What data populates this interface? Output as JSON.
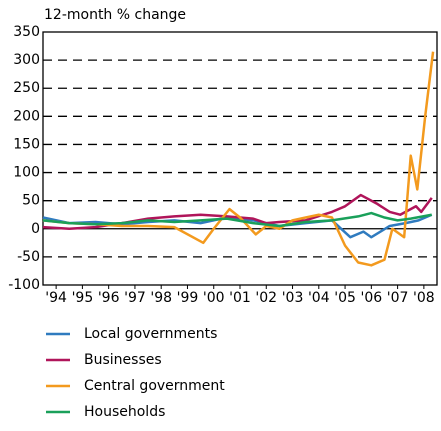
{
  "chart_data": {
    "type": "line",
    "y_label": "12-month % change",
    "xlim": [
      1994,
      2009
    ],
    "xticks": [
      {
        "value": 1994.5,
        "label": "'94"
      },
      {
        "value": 1995.5,
        "label": "'95"
      },
      {
        "value": 1996.5,
        "label": "'96"
      },
      {
        "value": 1997.5,
        "label": "'97"
      },
      {
        "value": 1998.5,
        "label": "'98"
      },
      {
        "value": 1999.5,
        "label": "'99"
      },
      {
        "value": 2000.5,
        "label": "'00"
      },
      {
        "value": 2001.5,
        "label": "'01"
      },
      {
        "value": 2002.5,
        "label": "'02"
      },
      {
        "value": 2003.5,
        "label": "'03"
      },
      {
        "value": 2004.5,
        "label": "'04"
      },
      {
        "value": 2005.5,
        "label": "'05"
      },
      {
        "value": 2006.5,
        "label": "'06"
      },
      {
        "value": 2007.5,
        "label": "'07"
      },
      {
        "value": 2008.5,
        "label": "'08"
      }
    ],
    "ylim": [
      -100,
      350
    ],
    "yticks": [
      -100,
      -50,
      0,
      50,
      100,
      150,
      200,
      250,
      300,
      350
    ],
    "grid": true,
    "series": [
      {
        "name": "Local governments",
        "color": "#2f7bbf",
        "x": [
          1994,
          1995,
          1996,
          1997,
          1998,
          1999,
          2000,
          2001,
          2002,
          2003,
          2004,
          2005,
          2005.7,
          2006.2,
          2006.5,
          2007.2,
          2007.8,
          2008.3,
          2008.8
        ],
        "values": [
          20,
          10,
          12,
          8,
          12,
          15,
          10,
          20,
          15,
          5,
          10,
          15,
          -15,
          -5,
          -15,
          5,
          10,
          15,
          25
        ]
      },
      {
        "name": "Businesses",
        "color": "#b0155a",
        "x": [
          1994,
          1995,
          1996,
          1997,
          1998,
          1999,
          2000,
          2001,
          2002,
          2002.5,
          2003,
          2004,
          2005,
          2005.5,
          2006.1,
          2006.7,
          2007.2,
          2007.6,
          2008.2,
          2008.4,
          2008.8
        ],
        "values": [
          3,
          0,
          3,
          10,
          18,
          22,
          25,
          22,
          18,
          10,
          12,
          15,
          30,
          40,
          60,
          45,
          30,
          25,
          40,
          30,
          55
        ]
      },
      {
        "name": "Central government",
        "color": "#f39a1e",
        "x": [
          1994,
          1995,
          1996,
          1997,
          1998,
          1999,
          2000.1,
          2000.5,
          2001.1,
          2001.5,
          2002.1,
          2002.5,
          2003,
          2003.5,
          2004,
          2004.5,
          2005,
          2005.5,
          2006,
          2006.5,
          2007,
          2007.3,
          2007.75,
          2008,
          2008.25,
          2008.55,
          2008.85
        ],
        "values": [
          15,
          10,
          8,
          5,
          5,
          3,
          -25,
          0,
          35,
          20,
          -10,
          5,
          0,
          15,
          20,
          25,
          20,
          -30,
          -60,
          -65,
          -55,
          0,
          -15,
          130,
          70,
          200,
          315
        ]
      },
      {
        "name": "Households",
        "color": "#1aa05a",
        "x": [
          1994,
          1995,
          1996,
          1997,
          1998,
          1999,
          2000,
          2001,
          2002,
          2003,
          2004,
          2005,
          2006,
          2006.5,
          2007,
          2007.5,
          2008,
          2008.8
        ],
        "values": [
          15,
          10,
          8,
          10,
          15,
          12,
          15,
          18,
          10,
          5,
          12,
          15,
          22,
          28,
          20,
          15,
          18,
          25
        ]
      }
    ]
  }
}
